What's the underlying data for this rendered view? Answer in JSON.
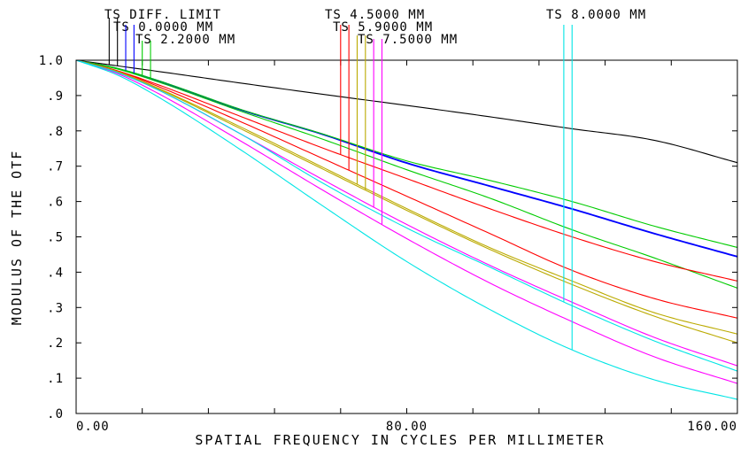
{
  "chart_data": {
    "type": "line",
    "title": "",
    "xlabel": "SPATIAL FREQUENCY IN CYCLES PER MILLIMETER",
    "ylabel": "MODULUS OF THE OTF",
    "xlim": [
      0,
      160
    ],
    "ylim": [
      0,
      1
    ],
    "grid": false,
    "x_tick_labels": [
      {
        "value": 0,
        "label": "0.00"
      },
      {
        "value": 80,
        "label": "80.00"
      },
      {
        "value": 160,
        "label": "160.00"
      }
    ],
    "y_tick_labels": [
      {
        "value": 1.0,
        "label": "1.0"
      },
      {
        "value": 0.9,
        "label": ".9"
      },
      {
        "value": 0.8,
        "label": ".8"
      },
      {
        "value": 0.7,
        "label": ".7"
      },
      {
        "value": 0.6,
        "label": ".6"
      },
      {
        "value": 0.5,
        "label": ".5"
      },
      {
        "value": 0.4,
        "label": ".4"
      },
      {
        "value": 0.3,
        "label": ".3"
      },
      {
        "value": 0.2,
        "label": ".2"
      },
      {
        "value": 0.1,
        "label": ".1"
      },
      {
        "value": 0.0,
        "label": ".0"
      }
    ],
    "legend": [
      {
        "label": "TS DIFF. LIMIT",
        "color": "#000000",
        "markers": [
          8,
          10
        ]
      },
      {
        "label": "TS 0.0000 MM",
        "color": "#0000ff",
        "markers": [
          12,
          14
        ]
      },
      {
        "label": "TS 2.2000 MM",
        "color": "#00cc00",
        "markers": [
          16,
          18
        ]
      },
      {
        "label": "TS 4.5000 MM",
        "color": "#ff0000",
        "markers": [
          64,
          66
        ]
      },
      {
        "label": "TS 5.9000 MM",
        "color": "#bbaa00",
        "markers": [
          68,
          70
        ]
      },
      {
        "label": "TS 7.5000 MM",
        "color": "#ff00ff",
        "markers": [
          72,
          74
        ]
      },
      {
        "label": "TS 8.0000 MM",
        "color": "#00e5e5",
        "markers": [
          118,
          120
        ]
      }
    ],
    "series": [
      {
        "color": "#000000",
        "x": [
          0,
          20,
          40,
          60,
          80,
          100,
          120,
          140,
          160
        ],
        "y": [
          1.0,
          0.968,
          0.935,
          0.903,
          0.872,
          0.84,
          0.806,
          0.773,
          0.71
        ]
      },
      {
        "color": "#0000ff",
        "x": [
          0,
          10,
          20,
          40,
          60,
          80,
          100,
          120,
          140,
          160
        ],
        "y": [
          1.0,
          0.977,
          0.942,
          0.86,
          0.79,
          0.71,
          0.645,
          0.58,
          0.51,
          0.445
        ]
      },
      {
        "color": "#0000ff",
        "x": [
          0,
          10,
          20,
          40,
          60,
          80,
          100,
          120,
          140,
          160
        ],
        "y": [
          1.0,
          0.976,
          0.94,
          0.858,
          0.788,
          0.708,
          0.643,
          0.578,
          0.508,
          0.443
        ]
      },
      {
        "color": "#00cc00",
        "x": [
          0,
          10,
          20,
          40,
          60,
          80,
          100,
          120,
          140,
          160
        ],
        "y": [
          1.0,
          0.977,
          0.942,
          0.86,
          0.79,
          0.715,
          0.66,
          0.6,
          0.53,
          0.47
        ]
      },
      {
        "color": "#00cc00",
        "x": [
          0,
          10,
          20,
          40,
          60,
          80,
          100,
          120,
          140,
          160
        ],
        "y": [
          1.0,
          0.975,
          0.938,
          0.855,
          0.775,
          0.69,
          0.61,
          0.52,
          0.44,
          0.355
        ]
      },
      {
        "color": "#ff0000",
        "x": [
          0,
          10,
          20,
          40,
          60,
          80,
          100,
          120,
          140,
          160
        ],
        "y": [
          1.0,
          0.97,
          0.93,
          0.84,
          0.75,
          0.665,
          0.58,
          0.5,
          0.43,
          0.375
        ]
      },
      {
        "color": "#ff0000",
        "x": [
          0,
          10,
          20,
          40,
          60,
          80,
          100,
          120,
          140,
          160
        ],
        "y": [
          1.0,
          0.97,
          0.925,
          0.825,
          0.72,
          0.615,
          0.51,
          0.405,
          0.325,
          0.27
        ]
      },
      {
        "color": "#bbaa00",
        "x": [
          0,
          10,
          20,
          40,
          60,
          80,
          100,
          120,
          140,
          160
        ],
        "y": [
          1.0,
          0.968,
          0.92,
          0.81,
          0.695,
          0.58,
          0.47,
          0.375,
          0.285,
          0.225
        ]
      },
      {
        "color": "#bbaa00",
        "x": [
          0,
          10,
          20,
          40,
          60,
          80,
          100,
          120,
          140,
          160
        ],
        "y": [
          1.0,
          0.967,
          0.918,
          0.805,
          0.69,
          0.575,
          0.465,
          0.365,
          0.275,
          0.2
        ]
      },
      {
        "color": "#ff00ff",
        "x": [
          0,
          10,
          20,
          40,
          60,
          80,
          100,
          120,
          140,
          160
        ],
        "y": [
          1.0,
          0.965,
          0.915,
          0.79,
          0.66,
          0.535,
          0.42,
          0.315,
          0.215,
          0.135
        ]
      },
      {
        "color": "#ff00ff",
        "x": [
          0,
          10,
          20,
          40,
          60,
          80,
          100,
          120,
          140,
          160
        ],
        "y": [
          1.0,
          0.962,
          0.905,
          0.77,
          0.63,
          0.495,
          0.37,
          0.26,
          0.16,
          0.085
        ]
      },
      {
        "color": "#00e5e5",
        "x": [
          0,
          10,
          20,
          40,
          60,
          80,
          100,
          120,
          140,
          160
        ],
        "y": [
          1.0,
          0.965,
          0.915,
          0.79,
          0.65,
          0.525,
          0.415,
          0.305,
          0.205,
          0.12
        ]
      },
      {
        "color": "#00e5e5",
        "x": [
          0,
          10,
          20,
          40,
          60,
          80,
          100,
          120,
          140,
          160
        ],
        "y": [
          1.0,
          0.958,
          0.895,
          0.745,
          0.585,
          0.43,
          0.295,
          0.18,
          0.095,
          0.04
        ]
      }
    ]
  }
}
